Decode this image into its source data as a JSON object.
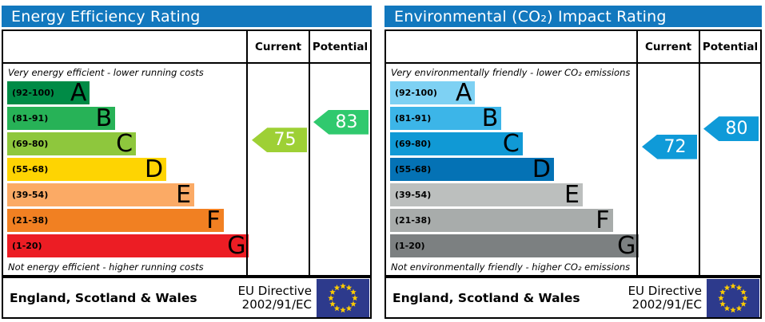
{
  "chart_data": [
    {
      "type": "bar",
      "title": "Energy Efficiency Rating",
      "header_color": "#1278be",
      "column_headers": [
        "Current",
        "Potential"
      ],
      "top_note": "Very energy efficient - lower running costs",
      "bottom_note": "Not energy efficient - higher running costs",
      "categories": [
        "A",
        "B",
        "C",
        "D",
        "E",
        "F",
        "G"
      ],
      "band_ranges": [
        "(92-100)",
        "(81-91)",
        "(69-80)",
        "(55-68)",
        "(39-54)",
        "(21-38)",
        "(1-20)"
      ],
      "band_colors": [
        "#008b46",
        "#27b257",
        "#8ec73d",
        "#fed402",
        "#fbaa65",
        "#f18022",
        "#ec1d24"
      ],
      "band_widths_pct": [
        34,
        44.5,
        53,
        65.5,
        77,
        89,
        99.5
      ],
      "ylim": [
        1,
        100
      ],
      "current": {
        "value": 75,
        "band": "C",
        "color": "#9ed035"
      },
      "potential": {
        "value": 83,
        "band": "B",
        "color": "#30c96e"
      },
      "footer": {
        "region": "England, Scotland & Wales",
        "directive_line1": "EU Directive",
        "directive_line2": "2002/91/EC"
      }
    },
    {
      "type": "bar",
      "title": "Environmental (CO₂) Impact Rating",
      "header_color": "#1278be",
      "column_headers": [
        "Current",
        "Potential"
      ],
      "top_note": "Very environmentally friendly - lower CO₂ emissions",
      "bottom_note": "Not environmentally friendly - higher CO₂ emissions",
      "categories": [
        "A",
        "B",
        "C",
        "D",
        "E",
        "F",
        "G"
      ],
      "band_ranges": [
        "(92-100)",
        "(81-91)",
        "(69-80)",
        "(55-68)",
        "(39-54)",
        "(21-38)",
        "(1-20)"
      ],
      "band_colors": [
        "#7ed1f3",
        "#3cb5e8",
        "#1099d5",
        "#0472b5",
        "#bcbfbe",
        "#a8acab",
        "#7c8081"
      ],
      "band_widths_pct": [
        34,
        44.5,
        53,
        65.5,
        77,
        89,
        99.5
      ],
      "ylim": [
        1,
        100
      ],
      "current": {
        "value": 72,
        "band": "C",
        "color": "#0f9ad8"
      },
      "potential": {
        "value": 80,
        "band": "C",
        "color": "#0f9ad8"
      },
      "footer": {
        "region": "England, Scotland & Wales",
        "directive_line1": "EU Directive",
        "directive_line2": "2002/91/EC"
      }
    }
  ],
  "flag": {
    "name": "eu-flag",
    "background": "#2d3a8c",
    "star_color": "#ffcc00"
  }
}
